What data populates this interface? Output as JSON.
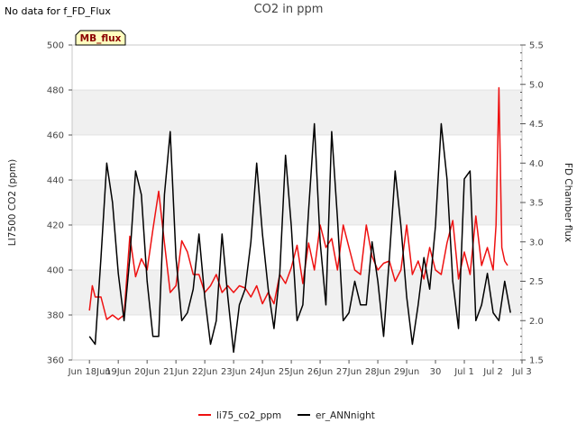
{
  "header": {
    "no_data_text": "No data for f_FD_Flux",
    "title": "CO2 in ppm"
  },
  "badge": {
    "label": "MB_flux"
  },
  "colors": {
    "co2": "#ee1111",
    "ann": "#000000",
    "band": "#f0f0f0",
    "badge_bg": "#ffffc0",
    "badge_text": "#8b0000"
  },
  "chart_data": {
    "type": "line",
    "title": "CO2 in ppm",
    "ylabel": "LI7500 CO2 (ppm)",
    "y2label": "FD Chamber flux",
    "x_ticks": [
      "Jun 18",
      "Jun 19",
      "Jun 20",
      "Jun 21",
      "Jun 22",
      "Jun 23",
      "Jun 24",
      "Jun 25",
      "Jun 26",
      "Jun 27",
      "Jun 28",
      "Jun 29",
      "Jun 30",
      "Jul 1",
      "Jul 2",
      "Jul 3"
    ],
    "x_tick_labels": [
      "Jun 18Jun",
      "19Jun",
      "20Jun",
      "21Jun",
      "22Jun",
      "23Jun",
      "24Jun",
      "25Jun",
      "26Jun",
      "27Jun",
      "28Jun",
      "29Jun",
      "30",
      "Jul 1",
      "Jul 2",
      "Jul 3"
    ],
    "xlim": [
      -0.6,
      15.0
    ],
    "ylim": [
      360,
      500
    ],
    "y_ticks": [
      "360",
      "380",
      "400",
      "420",
      "440",
      "460",
      "480",
      "500"
    ],
    "y2lim": [
      1.5,
      5.5
    ],
    "y2_ticks": [
      "1.5",
      "2.0",
      "2.5",
      "3.0",
      "3.5",
      "4.0",
      "4.5",
      "5.0",
      "5.5"
    ],
    "series": [
      {
        "name": "li75_co2_ppm",
        "x": [
          0.0,
          0.1,
          0.2,
          0.4,
          0.6,
          0.8,
          1.0,
          1.2,
          1.4,
          1.6,
          1.8,
          2.0,
          2.2,
          2.4,
          2.6,
          2.8,
          3.0,
          3.2,
          3.4,
          3.6,
          3.8,
          4.0,
          4.2,
          4.4,
          4.6,
          4.8,
          5.0,
          5.2,
          5.4,
          5.6,
          5.8,
          6.0,
          6.2,
          6.4,
          6.6,
          6.8,
          7.0,
          7.2,
          7.4,
          7.6,
          7.8,
          8.0,
          8.2,
          8.4,
          8.6,
          8.8,
          9.0,
          9.2,
          9.4,
          9.6,
          9.8,
          10.0,
          10.2,
          10.4,
          10.6,
          10.8,
          11.0,
          11.2,
          11.4,
          11.6,
          11.8,
          12.0,
          12.2,
          12.4,
          12.6,
          12.8,
          13.0,
          13.2,
          13.4,
          13.6,
          13.8,
          14.0,
          14.1,
          14.2,
          14.3,
          14.4,
          14.5
        ],
        "values": [
          382,
          393,
          388,
          388,
          378,
          380,
          378,
          380,
          415,
          397,
          405,
          400,
          418,
          435,
          412,
          390,
          393,
          413,
          408,
          398,
          398,
          390,
          393,
          398,
          390,
          393,
          390,
          393,
          392,
          388,
          393,
          385,
          390,
          385,
          398,
          394,
          401,
          411,
          394,
          412,
          400,
          420,
          410,
          414,
          400,
          420,
          410,
          400,
          398,
          420,
          406,
          400,
          403,
          404,
          395,
          400,
          420,
          398,
          404,
          396,
          410,
          400,
          398,
          412,
          422,
          396,
          408,
          398,
          424,
          402,
          410,
          400,
          420,
          481,
          410,
          404,
          402
        ]
      },
      {
        "name": "er_ANNnight",
        "x": [
          0.0,
          0.2,
          0.4,
          0.6,
          0.8,
          1.0,
          1.2,
          1.4,
          1.6,
          1.8,
          2.0,
          2.2,
          2.4,
          2.6,
          2.8,
          3.0,
          3.2,
          3.4,
          3.6,
          3.8,
          4.0,
          4.2,
          4.4,
          4.6,
          4.8,
          5.0,
          5.2,
          5.4,
          5.6,
          5.8,
          6.0,
          6.2,
          6.4,
          6.6,
          6.8,
          7.0,
          7.2,
          7.4,
          7.6,
          7.8,
          8.0,
          8.2,
          8.4,
          8.6,
          8.8,
          9.0,
          9.2,
          9.4,
          9.6,
          9.8,
          10.0,
          10.2,
          10.4,
          10.6,
          10.8,
          11.0,
          11.2,
          11.4,
          11.6,
          11.8,
          12.0,
          12.2,
          12.4,
          12.6,
          12.8,
          13.0,
          13.2,
          13.4,
          13.6,
          13.8,
          14.0,
          14.2,
          14.4,
          14.6
        ],
        "values": [
          1.8,
          1.7,
          2.8,
          4.0,
          3.5,
          2.6,
          2.0,
          2.8,
          3.9,
          3.6,
          2.5,
          1.8,
          1.8,
          3.6,
          4.4,
          2.8,
          2.0,
          2.1,
          2.4,
          3.1,
          2.3,
          1.7,
          2.0,
          3.1,
          2.3,
          1.6,
          2.2,
          2.4,
          3.0,
          4.0,
          3.1,
          2.4,
          1.9,
          2.6,
          4.1,
          3.2,
          2.0,
          2.2,
          3.4,
          4.5,
          3.0,
          2.2,
          4.4,
          3.3,
          2.0,
          2.1,
          2.5,
          2.2,
          2.2,
          3.0,
          2.5,
          1.8,
          2.8,
          3.9,
          3.2,
          2.3,
          1.7,
          2.2,
          2.8,
          2.4,
          3.2,
          4.5,
          3.8,
          2.5,
          1.9,
          3.8,
          3.9,
          2.0,
          2.2,
          2.6,
          2.1,
          2.0,
          2.5,
          2.1
        ]
      }
    ]
  }
}
